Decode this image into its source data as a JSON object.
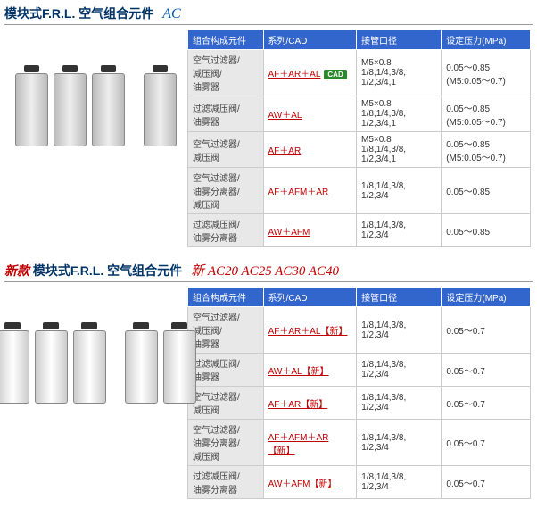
{
  "section1": {
    "title_main": "模块式F.R.L. 空气组合元件",
    "title_accent": "AC",
    "headers": [
      "组合构成元件",
      "系列/CAD",
      "接管口径",
      "设定压力(MPa)"
    ],
    "cad_label": "CAD",
    "rows": [
      {
        "c1": "空气过滤器/\n减压阀/\n油雾器",
        "link": "AF＋AR＋AL",
        "cad": true,
        "c3": "M5×0.8\n1/8,1/4,3/8,\n1/2,3/4,1",
        "c4": "0.05～0.85\n(M5:0.05～0.7)"
      },
      {
        "c1": "过滤减压阀/\n油雾器",
        "link": "AW＋AL",
        "cad": false,
        "c3": "M5×0.8\n1/8,1/4,3/8,\n1/2,3/4,1",
        "c4": "0.05～0.85\n(M5:0.05～0.7)"
      },
      {
        "c1": "空气过滤器/\n减压阀",
        "link": "AF＋AR",
        "cad": false,
        "c3": "M5×0.8\n1/8,1/4,3/8,\n1/2,3/4,1",
        "c4": "0.05～0.85\n(M5:0.05～0.7)"
      },
      {
        "c1": "空气过滤器/\n油雾分离器/\n减压阀",
        "link": "AF＋AFM＋AR",
        "cad": false,
        "c3": "1/8,1/4,3/8,\n1/2,3/4",
        "c4": "0.05～0.85"
      },
      {
        "c1": "过滤减压阀/\n油雾分离器",
        "link": "AW＋AFM",
        "cad": false,
        "c3": "1/8,1/4,3/8,\n1/2,3/4",
        "c4": "0.05～0.85"
      }
    ]
  },
  "section2": {
    "title_prefix": "新款",
    "title_main": "模块式F.R.L. 空气组合元件",
    "title_new": "新 AC20 AC25 AC30 AC40",
    "headers": [
      "组合构成元件",
      "系列/CAD",
      "接管口径",
      "设定压力(MPa)"
    ],
    "new_badge": "【新】",
    "rows": [
      {
        "c1": "空气过滤器/\n减压阀/\n油雾器",
        "link": "AF＋AR＋AL",
        "c3": "1/8,1/4,3/8,\n1/2,3/4",
        "c4": "0.05～0.7"
      },
      {
        "c1": "过滤减压阀/\n油雾器",
        "link": "AW＋AL",
        "c3": "1/8,1/4,3/8,\n1/2,3/4",
        "c4": "0.05～0.7"
      },
      {
        "c1": "空气过滤器/\n减压阀",
        "link": "AF＋AR",
        "c3": "1/8,1/4,3/8,\n1/2,3/4",
        "c4": "0.05～0.7"
      },
      {
        "c1": "空气过滤器/\n油雾分离器/\n减压阀",
        "link": "AF＋AFM＋AR",
        "c3": "1/8,1/4,3/8,\n1/2,3/4",
        "c4": "0.05～0.7"
      },
      {
        "c1": "过滤减压阀/\n油雾分离器",
        "link": "AW＋AFM",
        "c3": "1/8,1/4,3/8,\n1/2,3/4",
        "c4": "0.05～0.7"
      }
    ]
  }
}
